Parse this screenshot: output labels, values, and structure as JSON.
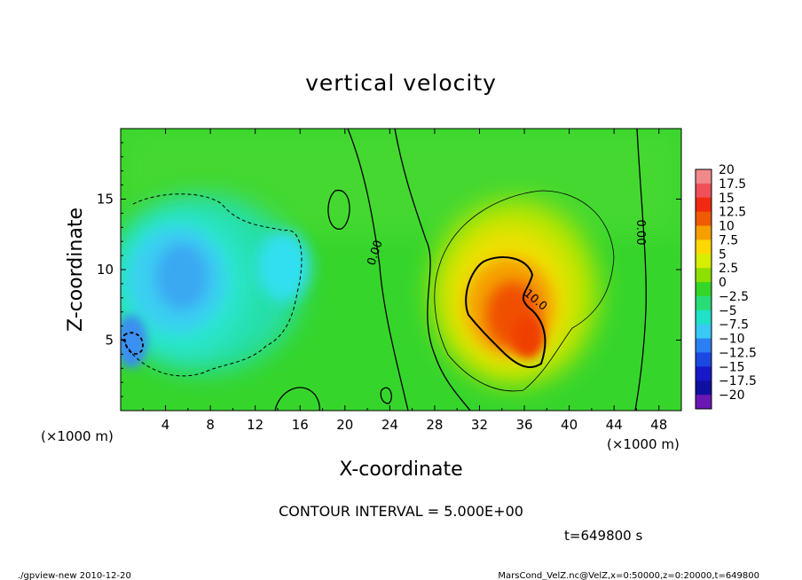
{
  "footer": {
    "left": "./gpview-new  2010-12-20",
    "right": "MarsCond_VelZ.nc@VelZ,x=0:50000,z=0:20000,t=649800"
  },
  "chart_data": {
    "type": "heatmap",
    "title": "vertical velocity",
    "xlabel": "X-coordinate",
    "ylabel": "Z-coordinate",
    "x_unit": "(×1000 m)",
    "y_unit": "(×1000 m)",
    "xlim": [
      0,
      50
    ],
    "ylim": [
      0,
      20
    ],
    "x_ticks": [
      "4",
      "8",
      "12",
      "16",
      "20",
      "24",
      "28",
      "32",
      "36",
      "40",
      "44",
      "48"
    ],
    "x_tick_values": [
      4,
      8,
      12,
      16,
      20,
      24,
      28,
      32,
      36,
      40,
      44,
      48
    ],
    "y_ticks": [
      "5",
      "10",
      "15"
    ],
    "y_tick_values": [
      5,
      10,
      15
    ],
    "colorbar": {
      "labels": [
        "20",
        "17.5",
        "15",
        "12.5",
        "10",
        "7.5",
        "5",
        "2.5",
        "0",
        "−2.5",
        "−5",
        "−7.5",
        "−10",
        "−12.5",
        "−15",
        "−17.5",
        "−20"
      ],
      "colors": [
        "#f08a8a",
        "#f0505a",
        "#f02a10",
        "#f05a00",
        "#f5a000",
        "#ffd800",
        "#d8ee00",
        "#8ee000",
        "#35d62a",
        "#28dc78",
        "#20e2c8",
        "#3ac8f5",
        "#2a80f0",
        "#1a48e0",
        "#1818c8",
        "#1010a0",
        "#6a18b4"
      ]
    },
    "contour_labels": [
      "0.00",
      "0.00",
      "0.00",
      "10.0"
    ],
    "contour_interval_label": "CONTOUR INTERVAL = 5.000E+00",
    "time_label": "t=649800 s"
  }
}
